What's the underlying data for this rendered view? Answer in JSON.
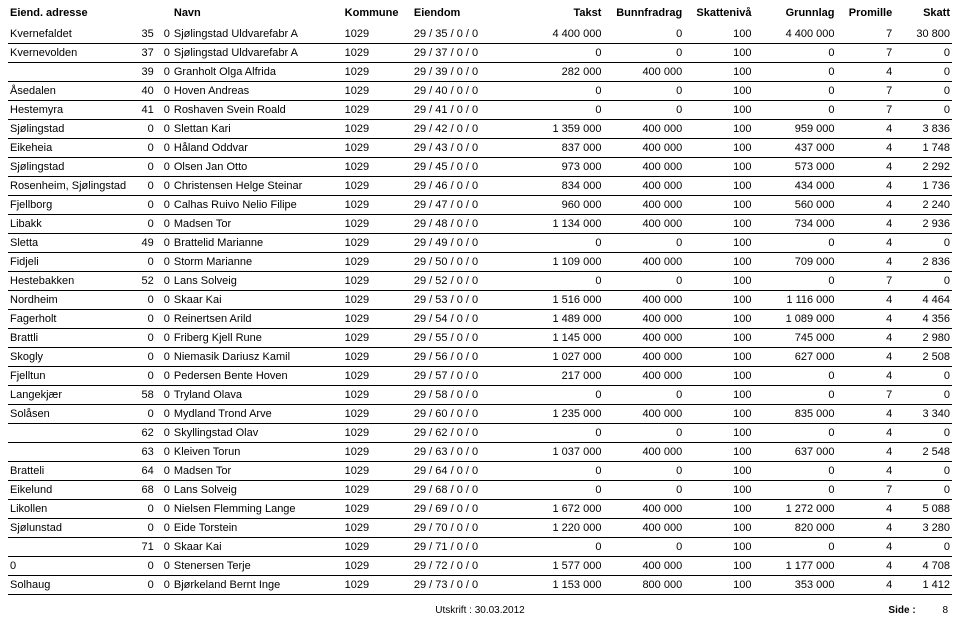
{
  "table": {
    "headers": {
      "addr": "Eiend. adresse",
      "navn": "Navn",
      "kommune": "Kommune",
      "eiendom": "Eiendom",
      "takst": "Takst",
      "bunnfradrag": "Bunnfradrag",
      "skatteniva": "Skattenivå",
      "grunnlag": "Grunnlag",
      "promille": "Promille",
      "skatt": "Skatt"
    },
    "rows": [
      {
        "addr": "Kvernefaldet",
        "a2": "35",
        "a3": "0",
        "navn": "Sjølingstad Uldvarefabr A",
        "kommune": "1029",
        "eiendom": "29 / 35 / 0 / 0",
        "takst": "4 400 000",
        "bunn": "0",
        "skniv": "100",
        "grunn": "4 400 000",
        "prom": "7",
        "skatt": "30 800"
      },
      {
        "addr": "Kvernevolden",
        "a2": "37",
        "a3": "0",
        "navn": "Sjølingstad Uldvarefabr A",
        "kommune": "1029",
        "eiendom": "29 / 37 / 0 / 0",
        "takst": "0",
        "bunn": "0",
        "skniv": "100",
        "grunn": "0",
        "prom": "7",
        "skatt": "0"
      },
      {
        "addr": "",
        "a2": "39",
        "a3": "0",
        "navn": "Granholt Olga Alfrida",
        "kommune": "1029",
        "eiendom": "29 / 39 / 0 / 0",
        "takst": "282 000",
        "bunn": "400 000",
        "skniv": "100",
        "grunn": "0",
        "prom": "4",
        "skatt": "0"
      },
      {
        "addr": "Åsedalen",
        "a2": "40",
        "a3": "0",
        "navn": "Hoven Andreas",
        "kommune": "1029",
        "eiendom": "29 / 40 / 0 / 0",
        "takst": "0",
        "bunn": "0",
        "skniv": "100",
        "grunn": "0",
        "prom": "7",
        "skatt": "0"
      },
      {
        "addr": "Hestemyra",
        "a2": "41",
        "a3": "0",
        "navn": "Roshaven Svein Roald",
        "kommune": "1029",
        "eiendom": "29 / 41 / 0 / 0",
        "takst": "0",
        "bunn": "0",
        "skniv": "100",
        "grunn": "0",
        "prom": "7",
        "skatt": "0"
      },
      {
        "addr": "Sjølingstad",
        "a2": "0",
        "a3": "0",
        "navn": "Slettan Kari",
        "kommune": "1029",
        "eiendom": "29 / 42 / 0 / 0",
        "takst": "1 359 000",
        "bunn": "400 000",
        "skniv": "100",
        "grunn": "959 000",
        "prom": "4",
        "skatt": "3 836"
      },
      {
        "addr": "Eikeheia",
        "a2": "0",
        "a3": "0",
        "navn": "Håland Oddvar",
        "kommune": "1029",
        "eiendom": "29 / 43 / 0 / 0",
        "takst": "837 000",
        "bunn": "400 000",
        "skniv": "100",
        "grunn": "437 000",
        "prom": "4",
        "skatt": "1 748"
      },
      {
        "addr": "Sjølingstad",
        "a2": "0",
        "a3": "0",
        "navn": "Olsen Jan Otto",
        "kommune": "1029",
        "eiendom": "29 / 45 / 0 / 0",
        "takst": "973 000",
        "bunn": "400 000",
        "skniv": "100",
        "grunn": "573 000",
        "prom": "4",
        "skatt": "2 292"
      },
      {
        "addr": "Rosenheim, Sjølingstad",
        "a2": "0",
        "a3": "0",
        "navn": "Christensen Helge Steinar",
        "kommune": "1029",
        "eiendom": "29 / 46 / 0 / 0",
        "takst": "834 000",
        "bunn": "400 000",
        "skniv": "100",
        "grunn": "434 000",
        "prom": "4",
        "skatt": "1 736"
      },
      {
        "addr": "Fjellborg",
        "a2": "0",
        "a3": "0",
        "navn": "Calhas Ruivo Nelio Filipe",
        "kommune": "1029",
        "eiendom": "29 / 47 / 0 / 0",
        "takst": "960 000",
        "bunn": "400 000",
        "skniv": "100",
        "grunn": "560 000",
        "prom": "4",
        "skatt": "2 240"
      },
      {
        "addr": "Libakk",
        "a2": "0",
        "a3": "0",
        "navn": "Madsen Tor",
        "kommune": "1029",
        "eiendom": "29 / 48 / 0 / 0",
        "takst": "1 134 000",
        "bunn": "400 000",
        "skniv": "100",
        "grunn": "734 000",
        "prom": "4",
        "skatt": "2 936"
      },
      {
        "addr": "Sletta",
        "a2": "49",
        "a3": "0",
        "navn": "Brattelid Marianne",
        "kommune": "1029",
        "eiendom": "29 / 49 / 0 / 0",
        "takst": "0",
        "bunn": "0",
        "skniv": "100",
        "grunn": "0",
        "prom": "4",
        "skatt": "0"
      },
      {
        "addr": "Fidjeli",
        "a2": "0",
        "a3": "0",
        "navn": "Storm Marianne",
        "kommune": "1029",
        "eiendom": "29 / 50 / 0 / 0",
        "takst": "1 109 000",
        "bunn": "400 000",
        "skniv": "100",
        "grunn": "709 000",
        "prom": "4",
        "skatt": "2 836"
      },
      {
        "addr": "Hestebakken",
        "a2": "52",
        "a3": "0",
        "navn": "Lans Solveig",
        "kommune": "1029",
        "eiendom": "29 / 52 / 0 / 0",
        "takst": "0",
        "bunn": "0",
        "skniv": "100",
        "grunn": "0",
        "prom": "7",
        "skatt": "0"
      },
      {
        "addr": "Nordheim",
        "a2": "0",
        "a3": "0",
        "navn": "Skaar Kai",
        "kommune": "1029",
        "eiendom": "29 / 53 / 0 / 0",
        "takst": "1 516 000",
        "bunn": "400 000",
        "skniv": "100",
        "grunn": "1 116 000",
        "prom": "4",
        "skatt": "4 464"
      },
      {
        "addr": "Fagerholt",
        "a2": "0",
        "a3": "0",
        "navn": "Reinertsen Arild",
        "kommune": "1029",
        "eiendom": "29 / 54 / 0 / 0",
        "takst": "1 489 000",
        "bunn": "400 000",
        "skniv": "100",
        "grunn": "1 089 000",
        "prom": "4",
        "skatt": "4 356"
      },
      {
        "addr": "Brattli",
        "a2": "0",
        "a3": "0",
        "navn": "Friberg Kjell Rune",
        "kommune": "1029",
        "eiendom": "29 / 55 / 0 / 0",
        "takst": "1 145 000",
        "bunn": "400 000",
        "skniv": "100",
        "grunn": "745 000",
        "prom": "4",
        "skatt": "2 980"
      },
      {
        "addr": "Skogly",
        "a2": "0",
        "a3": "0",
        "navn": "Niemasik Dariusz Kamil",
        "kommune": "1029",
        "eiendom": "29 / 56 / 0 / 0",
        "takst": "1 027 000",
        "bunn": "400 000",
        "skniv": "100",
        "grunn": "627 000",
        "prom": "4",
        "skatt": "2 508"
      },
      {
        "addr": "Fjelltun",
        "a2": "0",
        "a3": "0",
        "navn": "Pedersen Bente Hoven",
        "kommune": "1029",
        "eiendom": "29 / 57 / 0 / 0",
        "takst": "217 000",
        "bunn": "400 000",
        "skniv": "100",
        "grunn": "0",
        "prom": "4",
        "skatt": "0"
      },
      {
        "addr": "Langekjær",
        "a2": "58",
        "a3": "0",
        "navn": "Tryland Olava",
        "kommune": "1029",
        "eiendom": "29 / 58 / 0 / 0",
        "takst": "0",
        "bunn": "0",
        "skniv": "100",
        "grunn": "0",
        "prom": "7",
        "skatt": "0"
      },
      {
        "addr": "Solåsen",
        "a2": "0",
        "a3": "0",
        "navn": "Mydland Trond Arve",
        "kommune": "1029",
        "eiendom": "29 / 60 / 0 / 0",
        "takst": "1 235 000",
        "bunn": "400 000",
        "skniv": "100",
        "grunn": "835 000",
        "prom": "4",
        "skatt": "3 340"
      },
      {
        "addr": "",
        "a2": "62",
        "a3": "0",
        "navn": "Skyllingstad Olav",
        "kommune": "1029",
        "eiendom": "29 / 62 / 0 / 0",
        "takst": "0",
        "bunn": "0",
        "skniv": "100",
        "grunn": "0",
        "prom": "4",
        "skatt": "0"
      },
      {
        "addr": "",
        "a2": "63",
        "a3": "0",
        "navn": "Kleiven Torun",
        "kommune": "1029",
        "eiendom": "29 / 63 / 0 / 0",
        "takst": "1 037 000",
        "bunn": "400 000",
        "skniv": "100",
        "grunn": "637 000",
        "prom": "4",
        "skatt": "2 548"
      },
      {
        "addr": "Bratteli",
        "a2": "64",
        "a3": "0",
        "navn": "Madsen Tor",
        "kommune": "1029",
        "eiendom": "29 / 64 / 0 / 0",
        "takst": "0",
        "bunn": "0",
        "skniv": "100",
        "grunn": "0",
        "prom": "4",
        "skatt": "0"
      },
      {
        "addr": "Eikelund",
        "a2": "68",
        "a3": "0",
        "navn": "Lans Solveig",
        "kommune": "1029",
        "eiendom": "29 / 68 / 0 / 0",
        "takst": "0",
        "bunn": "0",
        "skniv": "100",
        "grunn": "0",
        "prom": "7",
        "skatt": "0"
      },
      {
        "addr": "Likollen",
        "a2": "0",
        "a3": "0",
        "navn": "Nielsen Flemming Lange",
        "kommune": "1029",
        "eiendom": "29 / 69 / 0 / 0",
        "takst": "1 672 000",
        "bunn": "400 000",
        "skniv": "100",
        "grunn": "1 272 000",
        "prom": "4",
        "skatt": "5 088"
      },
      {
        "addr": "Sjølunstad",
        "a2": "0",
        "a3": "0",
        "navn": "Eide Torstein",
        "kommune": "1029",
        "eiendom": "29 / 70 / 0 / 0",
        "takst": "1 220 000",
        "bunn": "400 000",
        "skniv": "100",
        "grunn": "820 000",
        "prom": "4",
        "skatt": "3 280"
      },
      {
        "addr": "",
        "a2": "71",
        "a3": "0",
        "navn": "Skaar Kai",
        "kommune": "1029",
        "eiendom": "29 / 71 / 0 / 0",
        "takst": "0",
        "bunn": "0",
        "skniv": "100",
        "grunn": "0",
        "prom": "4",
        "skatt": "0"
      },
      {
        "addr": "0",
        "a2": "0",
        "a3": "0",
        "navn": "Stenersen Terje",
        "kommune": "1029",
        "eiendom": "29 / 72 / 0 / 0",
        "takst": "1 577 000",
        "bunn": "400 000",
        "skniv": "100",
        "grunn": "1 177 000",
        "prom": "4",
        "skatt": "4 708"
      },
      {
        "addr": "Solhaug",
        "a2": "0",
        "a3": "0",
        "navn": "Bjørkeland Bernt Inge",
        "kommune": "1029",
        "eiendom": "29 / 73 / 0 / 0",
        "takst": "1 153 000",
        "bunn": "800 000",
        "skniv": "100",
        "grunn": "353 000",
        "prom": "4",
        "skatt": "1 412"
      }
    ]
  },
  "footer": {
    "printed": "Utskrift : 30.03.2012",
    "side_label": "Side :",
    "page": "8"
  }
}
